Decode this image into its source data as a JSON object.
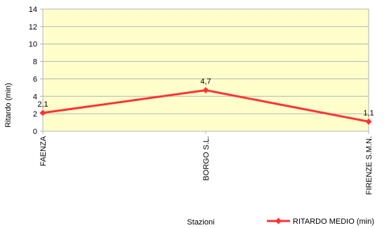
{
  "chart_data": {
    "type": "line",
    "title": "",
    "xlabel": "Stazioni",
    "ylabel": "Ritardo (min)",
    "ylim": [
      0,
      14
    ],
    "yticks": [
      0,
      2,
      4,
      6,
      8,
      10,
      12,
      14
    ],
    "grid": true,
    "legend_position": "bottom-right",
    "plot_background": "#ffffcc",
    "categories": [
      "FAENZA",
      "BORGO S.L.",
      "FIRENZE S.M.N."
    ],
    "series": [
      {
        "name": "RITARDO MEDIO (min)",
        "values": [
          2.1,
          4.7,
          1.1
        ],
        "labels": [
          "2,1",
          "4,7",
          "1,1"
        ],
        "color": "#ff3333"
      }
    ]
  }
}
